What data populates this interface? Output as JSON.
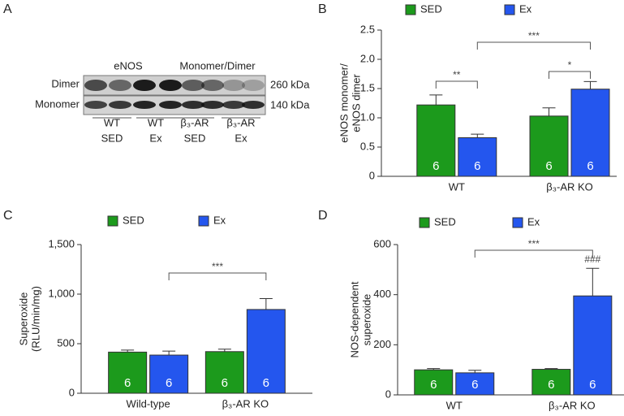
{
  "blot": {
    "panel": "A",
    "header": [
      "eNOS",
      "Monomer/Dimer"
    ],
    "rows": [
      "Dimer",
      "Monomer"
    ],
    "sizes": [
      "260 kDa",
      "140 kDa"
    ],
    "lanes": [
      [
        "WT",
        "SED"
      ],
      [
        "WT",
        "Ex"
      ],
      [
        "β₃-AR",
        "SED"
      ],
      [
        "β₃-AR",
        "Ex"
      ]
    ]
  },
  "chart_data": [
    {
      "type": "bar",
      "panel": "B",
      "categories": [
        "WT",
        "β₃-AR KO"
      ],
      "series": [
        {
          "name": "SED",
          "color": "#1c9a1c",
          "values": [
            1.22,
            1.03
          ],
          "errors": [
            0.17,
            0.14
          ],
          "n_labels": [
            "6",
            "6"
          ]
        },
        {
          "name": "Ex",
          "color": "#2456ee",
          "values": [
            0.66,
            1.49
          ],
          "errors": [
            0.06,
            0.13
          ],
          "n_labels": [
            "6",
            "6"
          ]
        }
      ],
      "ylabel": [
        "eNOS monomer/",
        "eNOS dimer"
      ],
      "ylim": [
        0,
        2.5
      ],
      "yticks": [
        0,
        0.5,
        {
          "value": 1,
          "label": "1.0"
        },
        1.5,
        {
          "value": 2,
          "label": "2.0"
        },
        2.5
      ],
      "annotations": [
        {
          "text": "**"
        },
        {
          "text": "*"
        },
        {
          "text": "***"
        }
      ]
    },
    {
      "type": "bar",
      "panel": "C",
      "categories": [
        "Wild-type",
        "β₃-AR KO"
      ],
      "series": [
        {
          "name": "SED",
          "color": "#1c9a1c",
          "values": [
            415,
            420
          ],
          "errors": [
            20,
            25
          ],
          "n_labels": [
            "6",
            "6"
          ]
        },
        {
          "name": "Ex",
          "color": "#2456ee",
          "values": [
            385,
            845
          ],
          "errors": [
            40,
            110
          ],
          "n_labels": [
            "6",
            "6"
          ]
        }
      ],
      "ylabel": [
        "Superoxide",
        "(RLU/min/mg)"
      ],
      "ylim": [
        0,
        1500
      ],
      "yticks": [
        0,
        500,
        {
          "value": 1000,
          "label": "1,000"
        },
        {
          "value": 1500,
          "label": "1,500"
        }
      ],
      "annotations": [
        {
          "text": "***"
        }
      ]
    },
    {
      "type": "bar",
      "panel": "D",
      "categories": [
        "WT",
        "β₃-AR KO"
      ],
      "series": [
        {
          "name": "SED",
          "color": "#1c9a1c",
          "values": [
            100,
            102
          ],
          "errors": [
            5,
            3
          ],
          "n_labels": [
            "6",
            "6"
          ]
        },
        {
          "name": "Ex",
          "color": "#2456ee",
          "values": [
            88,
            395
          ],
          "errors": [
            10,
            110
          ],
          "n_labels": [
            "6",
            "6"
          ]
        }
      ],
      "ylabel": [
        "NOS-dependent",
        "superoxide"
      ],
      "ylim": [
        0,
        600
      ],
      "yticks": [
        0,
        200,
        400,
        600
      ],
      "annotations": [
        {
          "text": "***"
        },
        {
          "text": "###"
        }
      ]
    }
  ]
}
